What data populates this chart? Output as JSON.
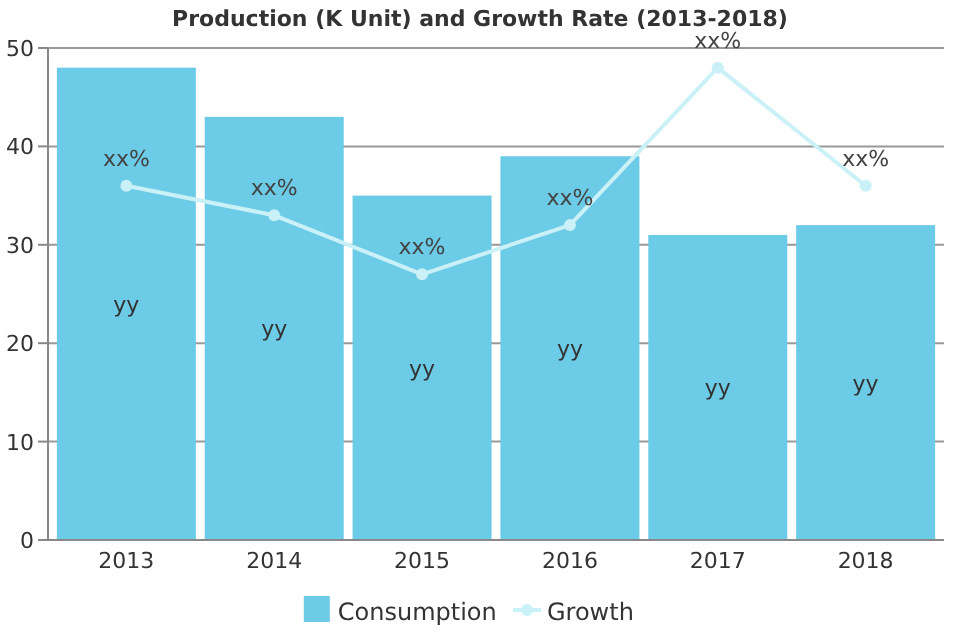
{
  "chart_data": {
    "type": "bar",
    "title": "Production (K Unit) and Growth Rate (2013-2018)",
    "categories": [
      "2013",
      "2014",
      "2015",
      "2016",
      "2017",
      "2018"
    ],
    "series": [
      {
        "name": "Consumption",
        "color": "#6ccbe6",
        "values": [
          48,
          43,
          35,
          39,
          31,
          32
        ],
        "value_labels": [
          "yy",
          "yy",
          "yy",
          "yy",
          "yy",
          "yy"
        ]
      },
      {
        "name": "Growth",
        "type": "line",
        "color": "#c9f1f7",
        "values": [
          36,
          33,
          27,
          32,
          48,
          36
        ],
        "value_labels": [
          "xx%",
          "xx%",
          "xx%",
          "xx%",
          "xx%",
          "xx%"
        ],
        "marker": "circle"
      }
    ],
    "ylim": [
      0,
      50
    ],
    "yticks": [
      0,
      10,
      20,
      30,
      40,
      50
    ],
    "grid": "y",
    "legend": "bottom"
  }
}
